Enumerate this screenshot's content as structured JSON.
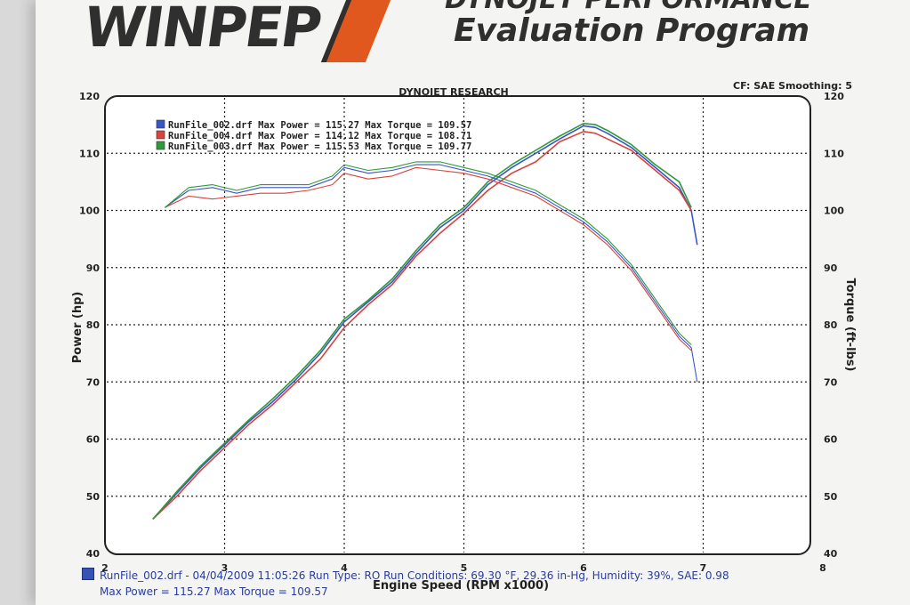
{
  "header": {
    "brand": "WINPEP",
    "subtitle_top": "DYNOJET PERFORMANCE",
    "subtitle": "Evaluation Program"
  },
  "chart_data": {
    "type": "line",
    "title": "DYNOJET RESEARCH",
    "corner_note": "CF: SAE  Smoothing: 5",
    "xlabel": "Engine Speed (RPM x1000)",
    "ylabel_left": "Power (hp)",
    "ylabel_right": "Torque (ft-lbs)",
    "xlim": [
      2,
      8
    ],
    "ylim": [
      40,
      120
    ],
    "x_ticks": [
      2,
      3,
      4,
      5,
      6,
      7,
      8
    ],
    "y_ticks": [
      40,
      50,
      60,
      70,
      80,
      90,
      100,
      110,
      120
    ],
    "grid": true,
    "legend_position": "top-left",
    "legend": [
      {
        "text": "RunFile_002.drf Max Power = 115.27     Max Torque = 109.57",
        "color": "#3a55c8"
      },
      {
        "text": "RunFile_004.drf Max Power = 114.12     Max Torque = 108.71",
        "color": "#d6443c"
      },
      {
        "text": "RunFile_003.drf Max Power = 115.53     Max Torque = 109.77",
        "color": "#2e9a3a"
      }
    ],
    "series": [
      {
        "group": "power",
        "color": "#3a55c8",
        "x": [
          2.4,
          2.6,
          2.8,
          3.0,
          3.2,
          3.4,
          3.6,
          3.8,
          4.0,
          4.2,
          4.4,
          4.6,
          4.8,
          5.0,
          5.2,
          5.4,
          5.6,
          5.8,
          6.0,
          6.1,
          6.2,
          6.4,
          6.6,
          6.8,
          6.9,
          6.95
        ],
        "y": [
          46,
          50.5,
          55,
          59,
          63,
          66.5,
          70.5,
          75,
          80.5,
          84,
          87.5,
          92.5,
          97,
          100,
          104.5,
          107.5,
          110,
          112.5,
          114.8,
          114.5,
          113.5,
          111,
          107.5,
          104,
          100,
          94
        ]
      },
      {
        "group": "power",
        "color": "#d6443c",
        "x": [
          2.4,
          2.6,
          2.8,
          3.0,
          3.2,
          3.4,
          3.6,
          3.8,
          4.0,
          4.2,
          4.4,
          4.6,
          4.8,
          5.0,
          5.2,
          5.4,
          5.6,
          5.8,
          6.0,
          6.1,
          6.2,
          6.4,
          6.6,
          6.8,
          6.9
        ],
        "y": [
          46,
          50,
          54.5,
          58.5,
          62.5,
          66,
          70,
          74,
          79.5,
          83.5,
          87,
          92,
          96,
          99.5,
          103.5,
          106.5,
          108.5,
          112,
          113.8,
          113.5,
          112.5,
          110.5,
          107,
          103.5,
          100
        ]
      },
      {
        "group": "power",
        "color": "#2e9a3a",
        "x": [
          2.4,
          2.6,
          2.8,
          3.0,
          3.2,
          3.4,
          3.6,
          3.8,
          4.0,
          4.2,
          4.4,
          4.6,
          4.8,
          5.0,
          5.2,
          5.4,
          5.6,
          5.8,
          6.0,
          6.1,
          6.2,
          6.4,
          6.6,
          6.8,
          6.9
        ],
        "y": [
          46,
          50.8,
          55.3,
          59.3,
          63.3,
          67,
          71,
          75.5,
          81,
          84.3,
          88,
          93,
          97.5,
          100.5,
          105,
          108,
          110.5,
          113,
          115.2,
          115,
          114,
          111.5,
          108,
          105,
          100.5
        ]
      },
      {
        "group": "torque",
        "color": "#3a55c8",
        "x": [
          2.5,
          2.7,
          2.9,
          3.1,
          3.3,
          3.5,
          3.7,
          3.9,
          4.0,
          4.2,
          4.4,
          4.6,
          4.8,
          5.0,
          5.2,
          5.4,
          5.6,
          5.8,
          6.0,
          6.2,
          6.4,
          6.6,
          6.8,
          6.9,
          6.95
        ],
        "y": [
          100.5,
          103.5,
          104,
          103,
          104,
          104,
          104,
          105.5,
          107.5,
          106.5,
          107,
          108,
          108,
          107,
          106,
          104.5,
          103,
          100.5,
          98,
          94.5,
          90,
          84,
          78,
          76,
          70
        ]
      },
      {
        "group": "torque",
        "color": "#d6443c",
        "x": [
          2.5,
          2.7,
          2.9,
          3.1,
          3.3,
          3.5,
          3.7,
          3.9,
          4.0,
          4.2,
          4.4,
          4.6,
          4.8,
          5.0,
          5.2,
          5.4,
          5.6,
          5.8,
          6.0,
          6.2,
          6.4,
          6.6,
          6.8,
          6.9
        ],
        "y": [
          100.5,
          102.5,
          102,
          102.5,
          103,
          103,
          103.5,
          104.5,
          106.5,
          105.5,
          106,
          107.5,
          107,
          106.5,
          105.5,
          104,
          102.5,
          100,
          97.5,
          94,
          89.5,
          83.5,
          77.5,
          75.5
        ]
      },
      {
        "group": "torque",
        "color": "#2e9a3a",
        "x": [
          2.5,
          2.7,
          2.9,
          3.1,
          3.3,
          3.5,
          3.7,
          3.9,
          4.0,
          4.2,
          4.4,
          4.6,
          4.8,
          5.0,
          5.2,
          5.4,
          5.6,
          5.8,
          6.0,
          6.2,
          6.4,
          6.6,
          6.8,
          6.9
        ],
        "y": [
          100.5,
          104,
          104.5,
          103.5,
          104.5,
          104.5,
          104.5,
          106,
          108,
          107,
          107.5,
          108.5,
          108.5,
          107.5,
          106.5,
          105,
          103.5,
          101,
          98.5,
          95,
          90.5,
          84.5,
          78.5,
          76.5
        ]
      }
    ]
  },
  "footer": {
    "line1": "RunFile_002.drf - 04/04/2009 11:05:26  Run Type: RO  Run Conditions: 69.30 °F, 29.36 in-Hg,  Humidity:  39%, SAE: 0.98",
    "line2": "Max Power = 115.27  Max Torque = 109.57"
  }
}
